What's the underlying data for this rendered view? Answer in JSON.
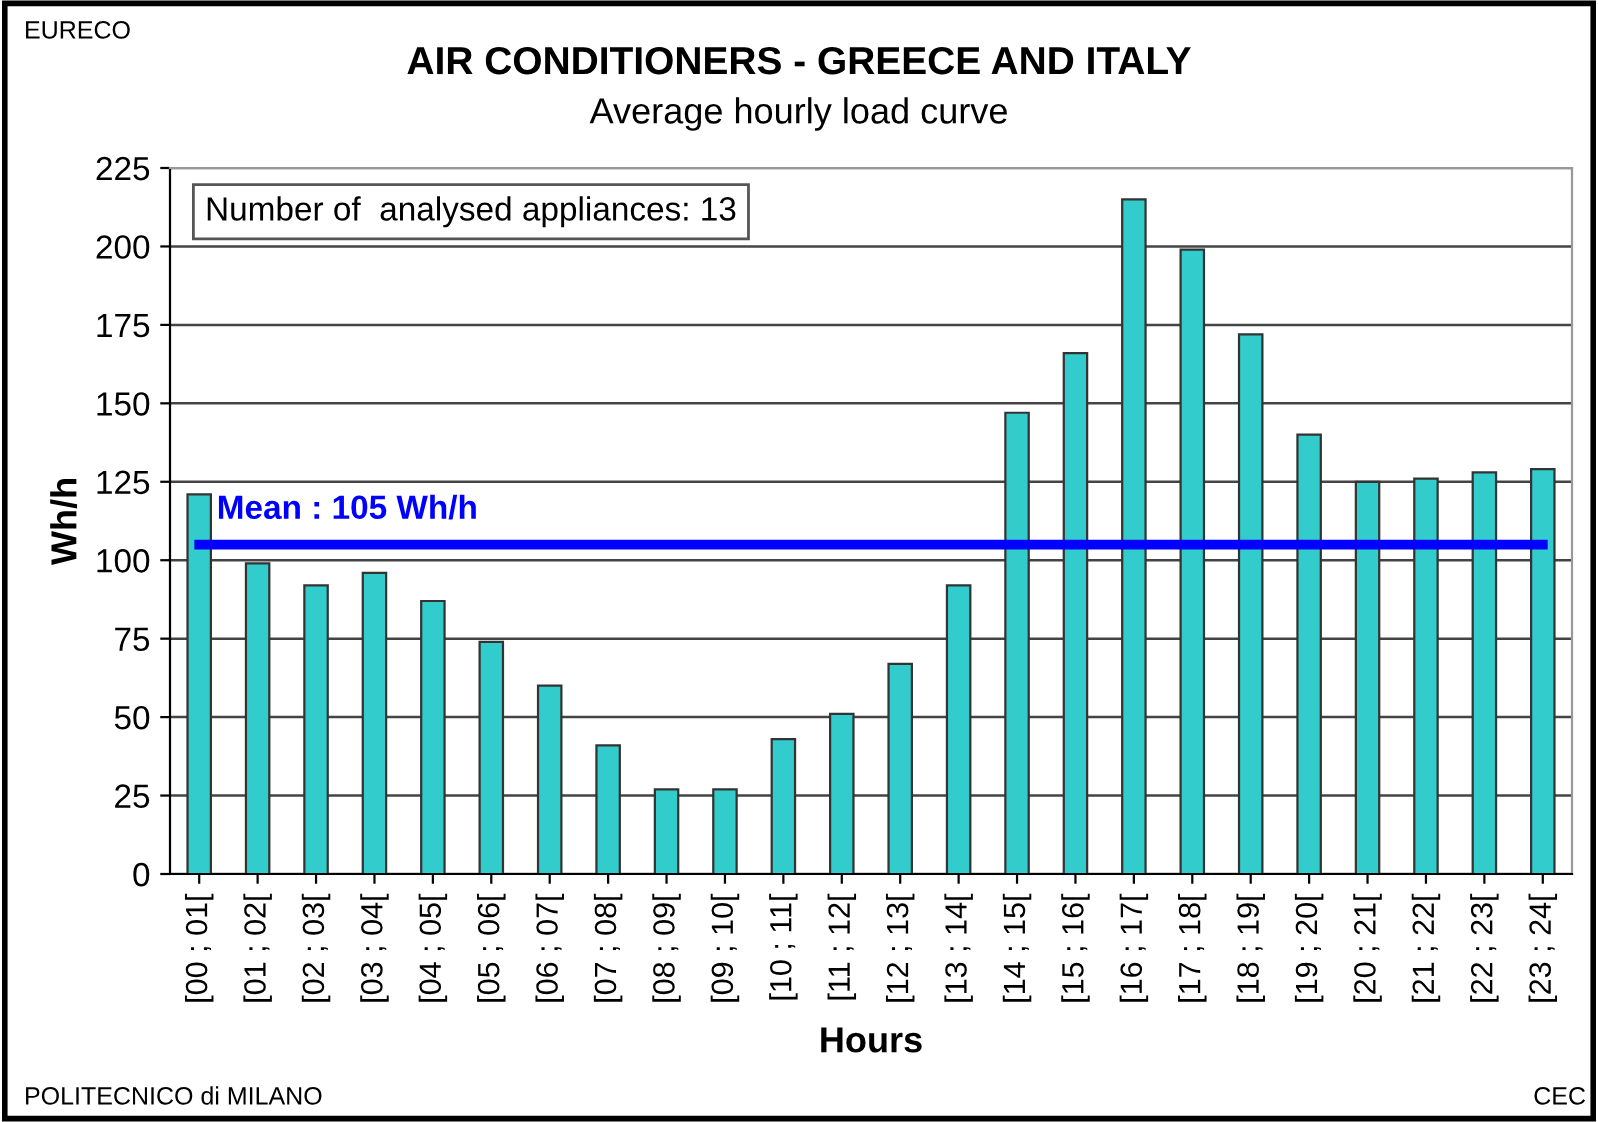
{
  "chart_data": {
    "type": "bar",
    "title": "AIR CONDITIONERS - GREECE AND ITALY",
    "subtitle": "Average hourly load curve",
    "xlabel": "Hours",
    "ylabel": "Wh/h",
    "categories": [
      "[00 ; 01[",
      "[01 ; 02[",
      "[02 ; 03[",
      "[03 ; 04[",
      "[04 ; 05[",
      "[05 ; 06[",
      "[06 ; 07[",
      "[07 ; 08[",
      "[08 ; 09[",
      "[09 ; 10[",
      "[10 ; 11[",
      "[11 ; 12[",
      "[12 ; 13[",
      "[13 ; 14[",
      "[14 ; 15[",
      "[15 ; 16[",
      "[16 ; 17[",
      "[17 ; 18[",
      "[18 ; 19[",
      "[19 ; 20[",
      "[20 ; 21[",
      "[21 ; 22[",
      "[22 ; 23[",
      "[23 ; 24["
    ],
    "values": [
      121,
      99,
      92,
      96,
      87,
      74,
      60,
      41,
      27,
      27,
      43,
      51,
      67,
      92,
      147,
      166,
      215,
      199,
      172,
      140,
      125,
      126,
      128,
      129
    ],
    "color": "#33cccc",
    "ylim": [
      0,
      225
    ],
    "yticks": [
      0,
      25,
      50,
      75,
      100,
      125,
      150,
      175,
      200,
      225
    ],
    "grid": "y",
    "ref_lines": [
      {
        "axis": "y",
        "value": 105,
        "label": "Mean : 105 Wh/h",
        "color": "#0000ff"
      }
    ],
    "annotations": [
      "Number of  analysed appliances: 13",
      "EURECO",
      "POLITECNICO di MILANO",
      "CEC"
    ]
  }
}
